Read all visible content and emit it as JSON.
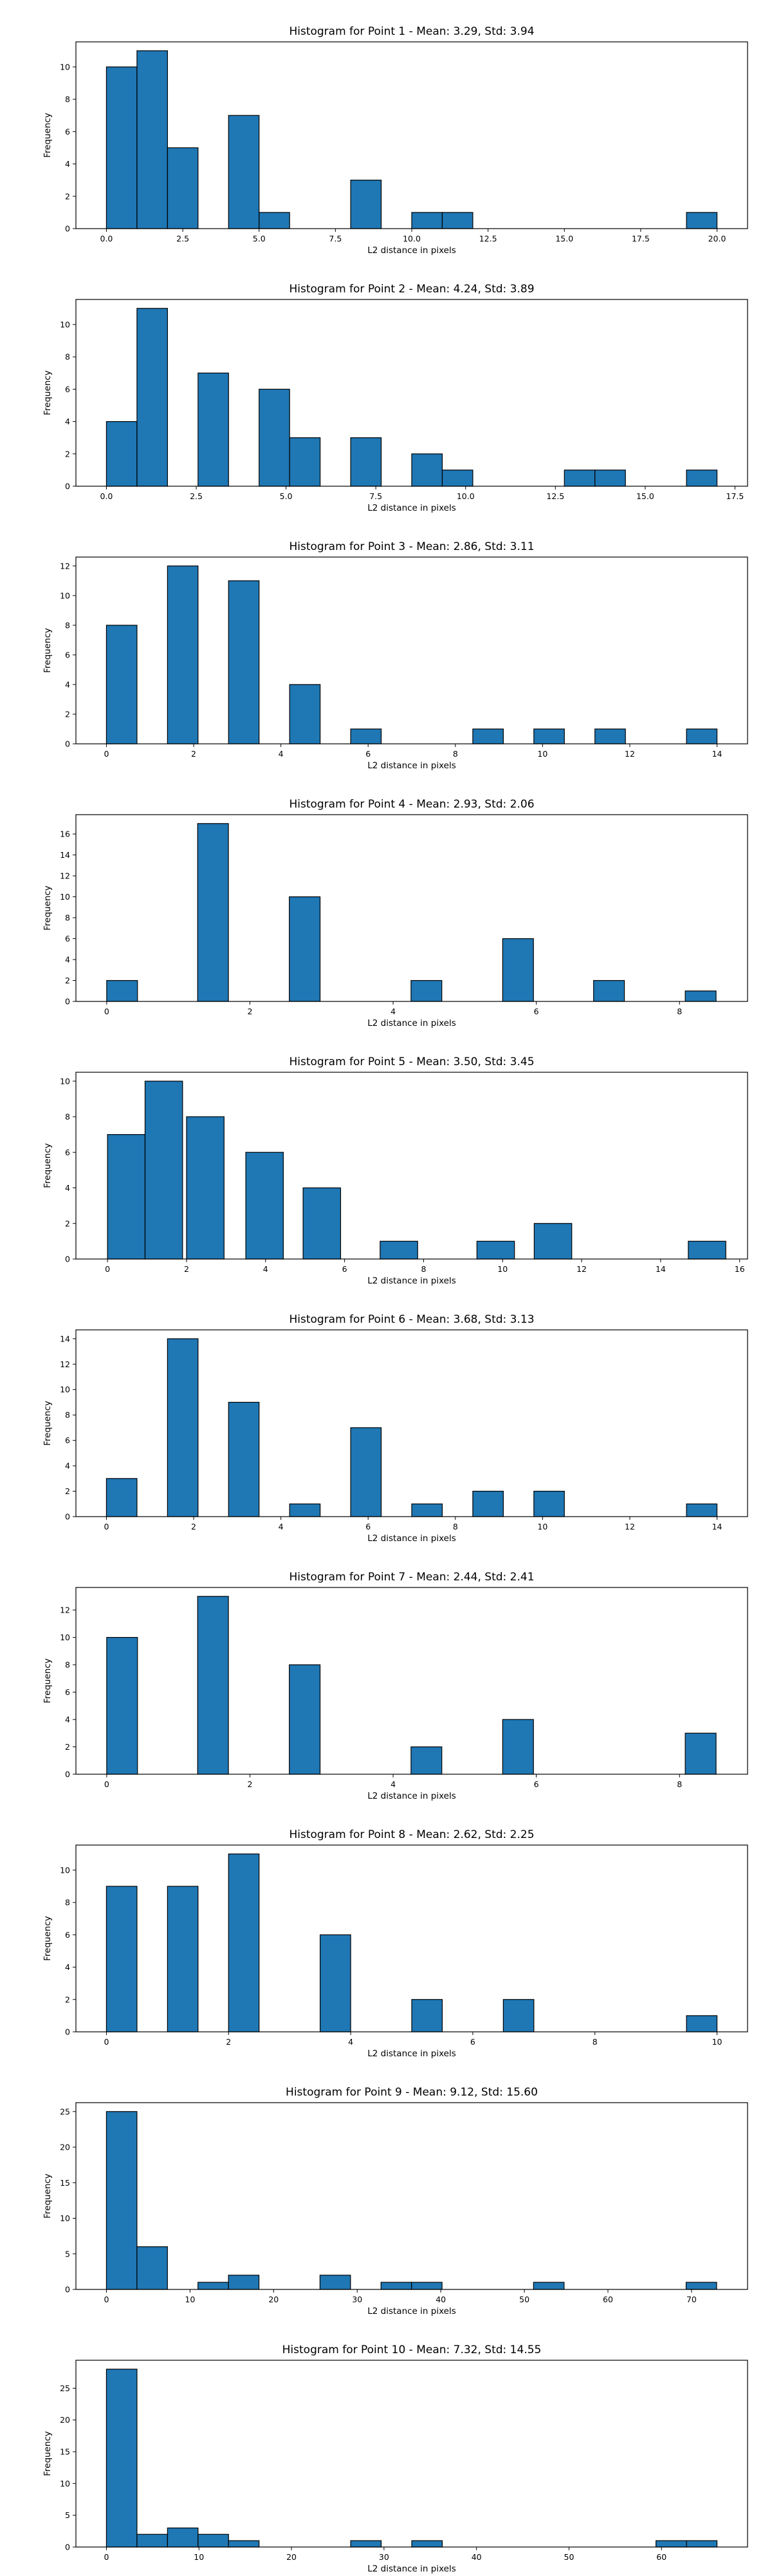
{
  "chart_data": [
    {
      "type": "bar",
      "title": "Histogram for Point 1 - Mean: 3.29, Std: 3.94",
      "xlabel": "L2 distance in pixels",
      "ylabel": "Frequency",
      "xlim": [
        -1.0,
        21.0
      ],
      "ylim": [
        0,
        11.55
      ],
      "xticks": [
        0.0,
        2.5,
        5.0,
        7.5,
        10.0,
        12.5,
        15.0,
        17.5,
        20.0
      ],
      "xtick_labels": [
        "0.0",
        "2.5",
        "5.0",
        "7.5",
        "10.0",
        "12.5",
        "15.0",
        "17.5",
        "20.0"
      ],
      "yticks": [
        0,
        2,
        4,
        6,
        8,
        10
      ],
      "bins": [
        {
          "x0": 0.0,
          "x1": 1.0,
          "count": 10
        },
        {
          "x0": 1.0,
          "x1": 2.0,
          "count": 11
        },
        {
          "x0": 2.0,
          "x1": 3.0,
          "count": 5
        },
        {
          "x0": 4.0,
          "x1": 5.0,
          "count": 7
        },
        {
          "x0": 5.0,
          "x1": 6.0,
          "count": 1
        },
        {
          "x0": 8.0,
          "x1": 9.0,
          "count": 3
        },
        {
          "x0": 10.0,
          "x1": 11.0,
          "count": 1
        },
        {
          "x0": 11.0,
          "x1": 12.0,
          "count": 1
        },
        {
          "x0": 19.0,
          "x1": 20.0,
          "count": 1
        }
      ]
    },
    {
      "type": "bar",
      "title": "Histogram for Point 2 - Mean: 4.24, Std: 3.89",
      "xlabel": "L2 distance in pixels",
      "ylabel": "Frequency",
      "xlim": [
        -0.85,
        17.85
      ],
      "ylim": [
        0,
        11.55
      ],
      "xticks": [
        0.0,
        2.5,
        5.0,
        7.5,
        10.0,
        12.5,
        15.0,
        17.5
      ],
      "xtick_labels": [
        "0.0",
        "2.5",
        "5.0",
        "7.5",
        "10.0",
        "12.5",
        "15.0",
        "17.5"
      ],
      "yticks": [
        0,
        2,
        4,
        6,
        8,
        10
      ],
      "bins": [
        {
          "x0": 0.0,
          "x1": 0.85,
          "count": 4
        },
        {
          "x0": 0.85,
          "x1": 1.7,
          "count": 11
        },
        {
          "x0": 2.55,
          "x1": 3.4,
          "count": 7
        },
        {
          "x0": 4.25,
          "x1": 5.1,
          "count": 6
        },
        {
          "x0": 5.1,
          "x1": 5.95,
          "count": 3
        },
        {
          "x0": 6.8,
          "x1": 7.65,
          "count": 3
        },
        {
          "x0": 8.5,
          "x1": 9.35,
          "count": 2
        },
        {
          "x0": 9.35,
          "x1": 10.2,
          "count": 1
        },
        {
          "x0": 12.75,
          "x1": 13.6,
          "count": 1
        },
        {
          "x0": 13.6,
          "x1": 14.45,
          "count": 1
        },
        {
          "x0": 16.15,
          "x1": 17.0,
          "count": 1
        }
      ]
    },
    {
      "type": "bar",
      "title": "Histogram for Point 3 - Mean: 2.86, Std: 3.11",
      "xlabel": "L2 distance in pixels",
      "ylabel": "Frequency",
      "xlim": [
        -0.7,
        14.7
      ],
      "ylim": [
        0,
        12.6
      ],
      "xticks": [
        0,
        2,
        4,
        6,
        8,
        10,
        12,
        14
      ],
      "xtick_labels": [
        "0",
        "2",
        "4",
        "6",
        "8",
        "10",
        "12",
        "14"
      ],
      "yticks": [
        0,
        2,
        4,
        6,
        8,
        10,
        12
      ],
      "bins": [
        {
          "x0": 0.0,
          "x1": 0.7,
          "count": 8
        },
        {
          "x0": 1.4,
          "x1": 2.1,
          "count": 12
        },
        {
          "x0": 2.8,
          "x1": 3.5,
          "count": 11
        },
        {
          "x0": 4.2,
          "x1": 4.9,
          "count": 4
        },
        {
          "x0": 5.6,
          "x1": 6.3,
          "count": 1
        },
        {
          "x0": 8.4,
          "x1": 9.1,
          "count": 1
        },
        {
          "x0": 9.8,
          "x1": 10.5,
          "count": 1
        },
        {
          "x0": 11.2,
          "x1": 11.9,
          "count": 1
        },
        {
          "x0": 13.3,
          "x1": 14.0,
          "count": 1
        }
      ]
    },
    {
      "type": "bar",
      "title": "Histogram for Point 4 - Mean: 2.93, Std: 2.06",
      "xlabel": "L2 distance in pixels",
      "ylabel": "Frequency",
      "xlim": [
        -0.43,
        8.95
      ],
      "ylim": [
        0,
        17.85
      ],
      "xticks": [
        0,
        2,
        4,
        6,
        8
      ],
      "xtick_labels": [
        "0",
        "2",
        "4",
        "6",
        "8"
      ],
      "yticks": [
        0,
        2,
        4,
        6,
        8,
        10,
        12,
        14,
        16
      ],
      "bins": [
        {
          "x0": 0.0,
          "x1": 0.43,
          "count": 2
        },
        {
          "x0": 1.27,
          "x1": 1.7,
          "count": 17
        },
        {
          "x0": 2.55,
          "x1": 2.98,
          "count": 10
        },
        {
          "x0": 4.25,
          "x1": 4.68,
          "count": 2
        },
        {
          "x0": 5.53,
          "x1": 5.96,
          "count": 6
        },
        {
          "x0": 6.8,
          "x1": 7.23,
          "count": 2
        },
        {
          "x0": 8.08,
          "x1": 8.51,
          "count": 1
        }
      ]
    },
    {
      "type": "bar",
      "title": "Histogram for Point 5 - Mean: 3.50, Std: 3.45",
      "xlabel": "L2 distance in pixels",
      "ylabel": "Frequency",
      "xlim": [
        -0.8,
        16.2
      ],
      "ylim": [
        0,
        10.5
      ],
      "xticks": [
        0,
        2,
        4,
        6,
        8,
        10,
        12,
        14,
        16
      ],
      "xtick_labels": [
        "0",
        "2",
        "4",
        "6",
        "8",
        "10",
        "12",
        "14",
        "16"
      ],
      "yticks": [
        0,
        2,
        4,
        6,
        8,
        10
      ],
      "bins": [
        {
          "x0": 0.0,
          "x1": 0.95,
          "count": 7
        },
        {
          "x0": 0.95,
          "x1": 1.9,
          "count": 10
        },
        {
          "x0": 2.0,
          "x1": 2.95,
          "count": 8
        },
        {
          "x0": 3.5,
          "x1": 4.45,
          "count": 6
        },
        {
          "x0": 4.95,
          "x1": 5.9,
          "count": 4
        },
        {
          "x0": 6.9,
          "x1": 7.85,
          "count": 1
        },
        {
          "x0": 9.35,
          "x1": 10.3,
          "count": 1
        },
        {
          "x0": 10.8,
          "x1": 11.75,
          "count": 2
        },
        {
          "x0": 14.7,
          "x1": 15.65,
          "count": 1
        }
      ]
    },
    {
      "type": "bar",
      "title": "Histogram for Point 6 - Mean: 3.68, Std: 3.13",
      "xlabel": "L2 distance in pixels",
      "ylabel": "Frequency",
      "xlim": [
        -0.7,
        14.7
      ],
      "ylim": [
        0,
        14.7
      ],
      "xticks": [
        0,
        2,
        4,
        6,
        8,
        10,
        12,
        14
      ],
      "xtick_labels": [
        "0",
        "2",
        "4",
        "6",
        "8",
        "10",
        "12",
        "14"
      ],
      "yticks": [
        0,
        2,
        4,
        6,
        8,
        10,
        12,
        14
      ],
      "bins": [
        {
          "x0": 0.0,
          "x1": 0.7,
          "count": 3
        },
        {
          "x0": 1.4,
          "x1": 2.1,
          "count": 14
        },
        {
          "x0": 2.8,
          "x1": 3.5,
          "count": 9
        },
        {
          "x0": 4.2,
          "x1": 4.9,
          "count": 1
        },
        {
          "x0": 5.6,
          "x1": 6.3,
          "count": 7
        },
        {
          "x0": 7.0,
          "x1": 7.7,
          "count": 1
        },
        {
          "x0": 8.4,
          "x1": 9.1,
          "count": 2
        },
        {
          "x0": 9.8,
          "x1": 10.5,
          "count": 2
        },
        {
          "x0": 13.3,
          "x1": 14.0,
          "count": 1
        }
      ]
    },
    {
      "type": "bar",
      "title": "Histogram for Point 7 - Mean: 2.44, Std: 2.41",
      "xlabel": "L2 distance in pixels",
      "ylabel": "Frequency",
      "xlim": [
        -0.43,
        8.95
      ],
      "ylim": [
        0,
        13.65
      ],
      "xticks": [
        0,
        2,
        4,
        6,
        8
      ],
      "xtick_labels": [
        "0",
        "2",
        "4",
        "6",
        "8"
      ],
      "yticks": [
        0,
        2,
        4,
        6,
        8,
        10,
        12
      ],
      "bins": [
        {
          "x0": 0.0,
          "x1": 0.43,
          "count": 10
        },
        {
          "x0": 1.27,
          "x1": 1.7,
          "count": 13
        },
        {
          "x0": 2.55,
          "x1": 2.98,
          "count": 8
        },
        {
          "x0": 4.25,
          "x1": 4.68,
          "count": 2
        },
        {
          "x0": 5.53,
          "x1": 5.96,
          "count": 4
        },
        {
          "x0": 8.08,
          "x1": 8.51,
          "count": 3
        }
      ]
    },
    {
      "type": "bar",
      "title": "Histogram for Point 8 - Mean: 2.62, Std: 2.25",
      "xlabel": "L2 distance in pixels",
      "ylabel": "Frequency",
      "xlim": [
        -0.5,
        10.5
      ],
      "ylim": [
        0,
        11.55
      ],
      "xticks": [
        0,
        2,
        4,
        6,
        8,
        10
      ],
      "xtick_labels": [
        "0",
        "2",
        "4",
        "6",
        "8",
        "10"
      ],
      "yticks": [
        0,
        2,
        4,
        6,
        8,
        10
      ],
      "bins": [
        {
          "x0": 0.0,
          "x1": 0.5,
          "count": 9
        },
        {
          "x0": 1.0,
          "x1": 1.5,
          "count": 9
        },
        {
          "x0": 2.0,
          "x1": 2.5,
          "count": 11
        },
        {
          "x0": 3.5,
          "x1": 4.0,
          "count": 6
        },
        {
          "x0": 5.0,
          "x1": 5.5,
          "count": 2
        },
        {
          "x0": 6.5,
          "x1": 7.0,
          "count": 2
        },
        {
          "x0": 9.5,
          "x1": 10.0,
          "count": 1
        }
      ]
    },
    {
      "type": "bar",
      "title": "Histogram for Point 9 - Mean: 9.12, Std: 15.60",
      "xlabel": "L2 distance in pixels",
      "ylabel": "Frequency",
      "xlim": [
        -3.65,
        76.7
      ],
      "ylim": [
        0,
        26.25
      ],
      "xticks": [
        0,
        10,
        20,
        30,
        40,
        50,
        60,
        70
      ],
      "xtick_labels": [
        "0",
        "10",
        "20",
        "30",
        "40",
        "50",
        "60",
        "70"
      ],
      "yticks": [
        0,
        5,
        10,
        15,
        20,
        25
      ],
      "bins": [
        {
          "x0": 0.0,
          "x1": 3.65,
          "count": 25
        },
        {
          "x0": 3.65,
          "x1": 7.3,
          "count": 6
        },
        {
          "x0": 10.95,
          "x1": 14.6,
          "count": 1
        },
        {
          "x0": 14.6,
          "x1": 18.25,
          "count": 2
        },
        {
          "x0": 25.55,
          "x1": 29.2,
          "count": 2
        },
        {
          "x0": 32.85,
          "x1": 36.5,
          "count": 1
        },
        {
          "x0": 36.5,
          "x1": 40.15,
          "count": 1
        },
        {
          "x0": 51.1,
          "x1": 54.75,
          "count": 1
        },
        {
          "x0": 69.35,
          "x1": 73.0,
          "count": 1
        }
      ]
    },
    {
      "type": "bar",
      "title": "Histogram for Point 10 - Mean: 7.32, Std: 14.55",
      "xlabel": "L2 distance in pixels",
      "ylabel": "Frequency",
      "xlim": [
        -3.3,
        69.3
      ],
      "ylim": [
        0,
        29.4
      ],
      "xticks": [
        0,
        10,
        20,
        30,
        40,
        50,
        60
      ],
      "xtick_labels": [
        "0",
        "10",
        "20",
        "30",
        "40",
        "50",
        "60"
      ],
      "yticks": [
        0,
        5,
        10,
        15,
        20,
        25
      ],
      "bins": [
        {
          "x0": 0.0,
          "x1": 3.3,
          "count": 28
        },
        {
          "x0": 3.3,
          "x1": 6.6,
          "count": 2
        },
        {
          "x0": 6.6,
          "x1": 9.9,
          "count": 3
        },
        {
          "x0": 9.9,
          "x1": 13.2,
          "count": 2
        },
        {
          "x0": 13.2,
          "x1": 16.5,
          "count": 1
        },
        {
          "x0": 26.4,
          "x1": 29.7,
          "count": 1
        },
        {
          "x0": 33.0,
          "x1": 36.3,
          "count": 1
        },
        {
          "x0": 59.4,
          "x1": 62.7,
          "count": 1
        },
        {
          "x0": 62.7,
          "x1": 66.0,
          "count": 1
        }
      ]
    }
  ],
  "style": {
    "bar_fill": "#1f77b4",
    "bar_edge": "#000000",
    "axis_color": "#000000",
    "background": "#ffffff"
  }
}
